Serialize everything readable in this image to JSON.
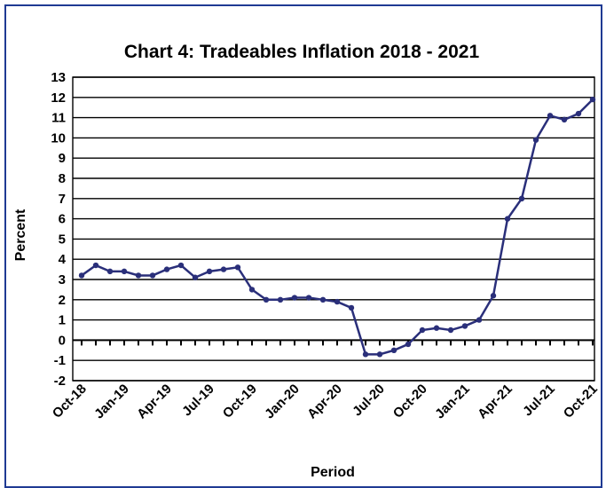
{
  "chart_data": {
    "type": "line",
    "title": "Chart 4: Tradeables Inflation 2018 - 2021",
    "xlabel": "Period",
    "ylabel": "Percent",
    "ylim": [
      -2,
      13
    ],
    "yticks": [
      -2,
      -1,
      0,
      1,
      2,
      3,
      4,
      5,
      6,
      7,
      8,
      9,
      10,
      11,
      12,
      13
    ],
    "grid": "horizontal",
    "line_color": "#2a2f7a",
    "x_tick_labels": [
      "Oct-18",
      "Jan-19",
      "Apr-19",
      "Jul-19",
      "Oct-19",
      "Jan-20",
      "Apr-20",
      "Jul-20",
      "Oct-20",
      "Jan-21",
      "Apr-21",
      "Jul-21",
      "Oct-21"
    ],
    "x": [
      "Oct-18",
      "Nov-18",
      "Dec-18",
      "Jan-19",
      "Feb-19",
      "Mar-19",
      "Apr-19",
      "May-19",
      "Jun-19",
      "Jul-19",
      "Aug-19",
      "Sep-19",
      "Oct-19",
      "Nov-19",
      "Dec-19",
      "Jan-20",
      "Feb-20",
      "Mar-20",
      "Apr-20",
      "May-20",
      "Jun-20",
      "Jul-20",
      "Aug-20",
      "Sep-20",
      "Oct-20",
      "Nov-20",
      "Dec-20",
      "Jan-21",
      "Feb-21",
      "Mar-21",
      "Apr-21",
      "May-21",
      "Jun-21",
      "Jul-21",
      "Aug-21",
      "Sep-21",
      "Oct-21"
    ],
    "series": [
      {
        "values": [
          3.2,
          3.7,
          3.4,
          3.4,
          3.2,
          3.2,
          3.5,
          3.7,
          3.1,
          3.4,
          3.5,
          3.6,
          2.5,
          2.0,
          2.0,
          2.1,
          2.1,
          2.0,
          1.9,
          1.6,
          -0.7,
          -0.7,
          -0.5,
          -0.2,
          0.5,
          0.6,
          0.5,
          0.7,
          1.0,
          2.2,
          6.0,
          7.0,
          9.9,
          11.1,
          10.9,
          11.2,
          11.9
        ]
      }
    ]
  }
}
